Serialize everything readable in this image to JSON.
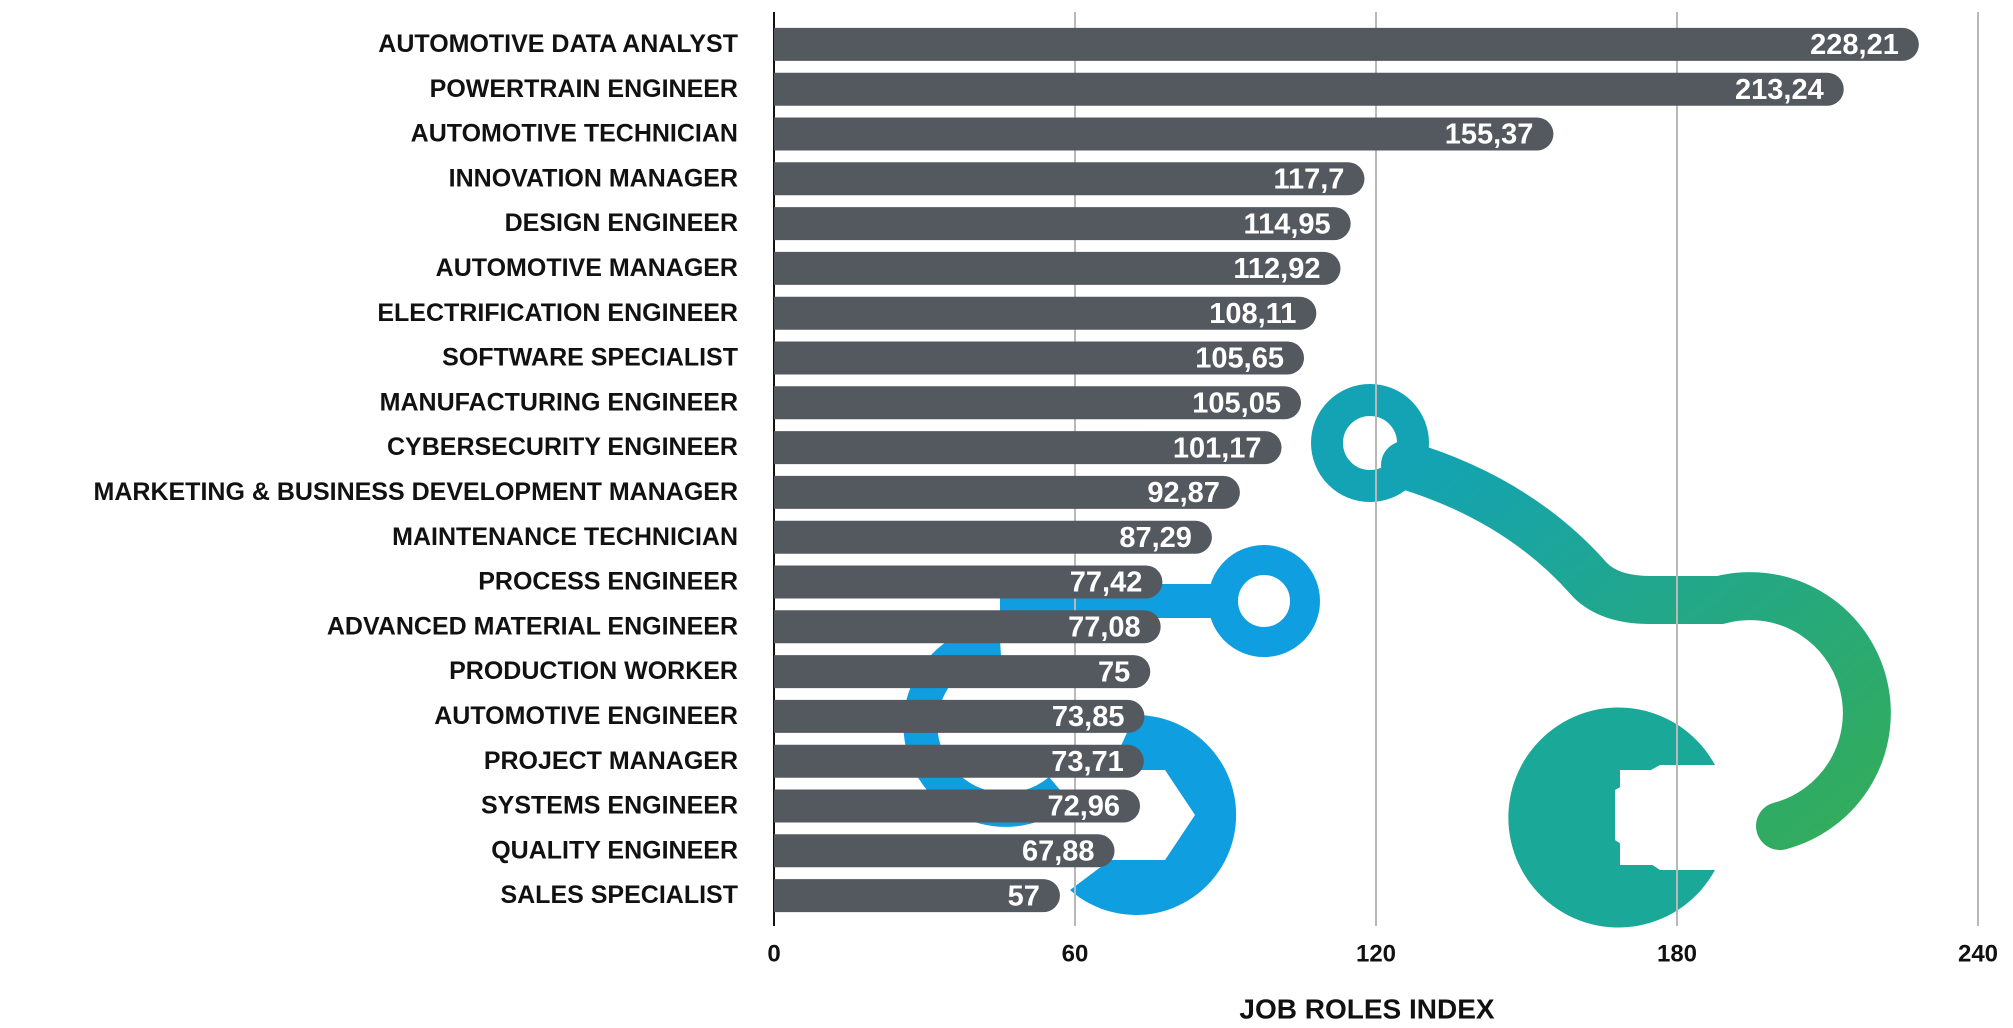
{
  "chart_data": {
    "type": "bar",
    "orientation": "horizontal",
    "x_label": "JOB ROLES INDEX",
    "categories": [
      "AUTOMOTIVE DATA ANALYST",
      "POWERTRAIN ENGINEER",
      "AUTOMOTIVE TECHNICIAN",
      "INNOVATION MANAGER",
      "DESIGN ENGINEER",
      "AUTOMOTIVE MANAGER",
      "ELECTRIFICATION ENGINEER",
      "SOFTWARE SPECIALIST",
      "MANUFACTURING ENGINEER",
      "CYBERSECURITY ENGINEER",
      "MARKETING & BUSINESS DEVELOPMENT MANAGER",
      "MAINTENANCE TECHNICIAN",
      "PROCESS ENGINEER",
      "ADVANCED MATERIAL ENGINEER",
      "PRODUCTION WORKER",
      "AUTOMOTIVE ENGINEER",
      "PROJECT MANAGER",
      "SYSTEMS ENGINEER",
      "QUALITY ENGINEER",
      "SALES SPECIALIST"
    ],
    "values": [
      228.21,
      213.24,
      155.37,
      117.7,
      114.95,
      112.92,
      108.11,
      105.65,
      105.05,
      101.17,
      92.87,
      87.29,
      77.42,
      77.08,
      75,
      73.85,
      73.71,
      72.96,
      67.88,
      57
    ],
    "value_labels": [
      "228,21",
      "213,24",
      "155,37",
      "117,7",
      "114,95",
      "112,92",
      "108,11",
      "105,65",
      "105,05",
      "101,17",
      "92,87",
      "87,29",
      "77,42",
      "77,08",
      "75",
      "73,85",
      "73,71",
      "72,96",
      "67,88",
      "57"
    ],
    "color": "#54585f",
    "xlim": [
      0,
      240
    ],
    "xticks": [
      0,
      60,
      120,
      180,
      240
    ],
    "grid": true
  }
}
